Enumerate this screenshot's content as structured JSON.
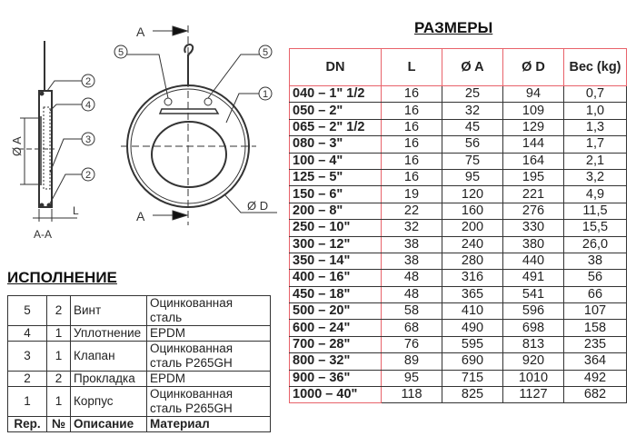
{
  "drawing": {
    "section_label": "A-A",
    "cut_label": "A",
    "dim_a": "Ø A",
    "dim_d": "Ø D",
    "dim_l": "L",
    "callouts_side": [
      "2",
      "4",
      "3",
      "2"
    ],
    "callouts_front": [
      "5",
      "5",
      "1"
    ]
  },
  "parts": {
    "title": "ИСПОЛНЕНИЕ",
    "rows": [
      {
        "rep": "5",
        "qty": "2",
        "desc": "Винт",
        "mat": "Оцинкованная сталь"
      },
      {
        "rep": "4",
        "qty": "1",
        "desc": "Уплотнение",
        "mat": "EPDM"
      },
      {
        "rep": "3",
        "qty": "1",
        "desc": "Клапан",
        "mat": "Оцинкованная сталь P265GH"
      },
      {
        "rep": "2",
        "qty": "2",
        "desc": "Прокладка",
        "mat": "EPDM"
      },
      {
        "rep": "1",
        "qty": "1",
        "desc": "Корпус",
        "mat": "Оцинкованная сталь P265GH"
      }
    ],
    "header": {
      "rep": "Rep.",
      "qty": "№",
      "desc": "Описание",
      "mat": "Материал"
    }
  },
  "dims": {
    "title": "РАЗМЕРЫ",
    "header": [
      "DN",
      "L",
      "Ø A",
      "Ø D",
      "Вес (kg)"
    ],
    "rows": [
      [
        "040 – 1\" 1/2",
        "16",
        "25",
        "94",
        "0,7"
      ],
      [
        "050 – 2\"",
        "16",
        "32",
        "109",
        "1,0"
      ],
      [
        "065 – 2\" 1/2",
        "16",
        "45",
        "129",
        "1,3"
      ],
      [
        "080 – 3\"",
        "16",
        "56",
        "144",
        "1,7"
      ],
      [
        "100 – 4\"",
        "16",
        "75",
        "164",
        "2,1"
      ],
      [
        "125 – 5\"",
        "16",
        "95",
        "195",
        "3,2"
      ],
      [
        "150 – 6\"",
        "19",
        "120",
        "221",
        "4,9"
      ],
      [
        "200 – 8\"",
        "22",
        "160",
        "276",
        "11,5"
      ],
      [
        "250 – 10\"",
        "32",
        "200",
        "330",
        "15,5"
      ],
      [
        "300 – 12\"",
        "38",
        "240",
        "380",
        "26,0"
      ],
      [
        "350 – 14\"",
        "38",
        "280",
        "440",
        "38"
      ],
      [
        "400 – 16\"",
        "48",
        "316",
        "491",
        "56"
      ],
      [
        "450 – 18\"",
        "48",
        "365",
        "541",
        "66"
      ],
      [
        "500 – 20\"",
        "58",
        "410",
        "596",
        "107"
      ],
      [
        "600 – 24\"",
        "68",
        "490",
        "698",
        "158"
      ],
      [
        "700 – 28\"",
        "76",
        "595",
        "813",
        "235"
      ],
      [
        "800 – 32\"",
        "89",
        "690",
        "920",
        "364"
      ],
      [
        "900 – 36\"",
        "95",
        "715",
        "1010",
        "492"
      ],
      [
        "1000 – 40\"",
        "118",
        "825",
        "1127",
        "682"
      ]
    ],
    "accent_color": "#e8626a"
  }
}
